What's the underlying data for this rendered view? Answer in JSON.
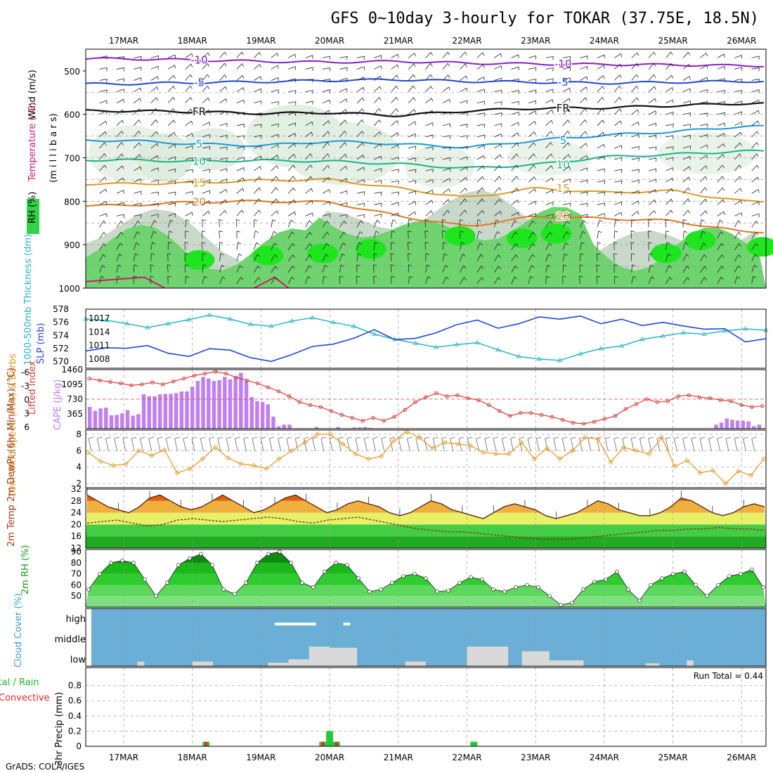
{
  "title": "GFS 0~10day 3-hourly for TOKAR (37.75E, 18.5N)",
  "footer": "GrADS: COLA/IGES",
  "colors": {
    "purple": "#8a1ec8",
    "blue": "#1f47d8",
    "lightblue": "#1e96d8",
    "teal": "#16b48c",
    "gold": "#dc9a1e",
    "orange": "#e07820",
    "magenta": "#d2186e",
    "cyan": "#28b4c8",
    "rhGreen": "#32d24a",
    "cape": "#c080f0",
    "li": "#dc3c3c",
    "wind10": "#e6961e",
    "cloud": "#6baed6",
    "cloudFill": "#d9d9d9",
    "rain": "#28c83c",
    "conv": "#e62828"
  },
  "chart_data": [
    {
      "id": "upper",
      "type": "heatmap",
      "ylabel_parts": [
        "Wind (m/s)",
        "Temperature (°C)",
        "RH (%)",
        "(m i l l i b a r s)"
      ],
      "dates": [
        "17MAR",
        "18MAR",
        "19MAR",
        "20MAR",
        "21MAR",
        "22MAR",
        "23MAR",
        "24MAR",
        "25MAR",
        "26MAR"
      ],
      "y_ticks": [
        500,
        600,
        700,
        800,
        900,
        1000
      ],
      "ylim": [
        450,
        1000
      ],
      "isotherms": [
        {
          "label": "-10",
          "y": [
            472,
            475,
            478,
            480,
            478,
            482,
            484,
            485,
            486,
            488
          ]
        },
        {
          "label": "-5",
          "y": [
            530,
            527,
            525,
            522,
            520,
            524,
            526,
            528,
            526,
            524
          ]
        },
        {
          "label": "FR",
          "y": [
            592,
            594,
            598,
            596,
            603,
            592,
            586,
            585,
            580,
            575
          ]
        },
        {
          "label": "5",
          "y": [
            660,
            668,
            672,
            662,
            668,
            676,
            660,
            648,
            640,
            628
          ]
        },
        {
          "label": "10",
          "y": [
            705,
            708,
            706,
            708,
            714,
            724,
            716,
            698,
            692,
            685
          ]
        },
        {
          "label": "15",
          "y": [
            760,
            758,
            752,
            750,
            770,
            792,
            770,
            780,
            776,
            800
          ]
        },
        {
          "label": "20",
          "y": [
            810,
            802,
            800,
            802,
            834,
            858,
            835,
            840,
            845,
            870
          ]
        }
      ]
    },
    {
      "id": "slp_thk",
      "type": "line",
      "ylabel_left": "1000-500mb Thickness (dm)",
      "ylabel_right": "SLP (mb)",
      "left_ticks": [
        570,
        572,
        574,
        576,
        578
      ],
      "right_ticks": [
        1008,
        1011,
        1014,
        1017
      ],
      "series": [
        {
          "name": "1000-500mb Thickness (dm)",
          "values": [
            576.5,
            576.3,
            575.8,
            575.2,
            575.8,
            576.4,
            577.1,
            576.5,
            575.7,
            575.4,
            576.2,
            576.7,
            576.0,
            575.4,
            574.2,
            573.4,
            572.8,
            572.2,
            572.6,
            572.9,
            571.8,
            570.8,
            570.4,
            570.2,
            571.2,
            572.0,
            572.4,
            573.4,
            573.9,
            574.4,
            574.2,
            574.7,
            575.0,
            574.8
          ]
        },
        {
          "name": "SLP (mb)",
          "values": [
            1009.8,
            1010.5,
            1010.4,
            1011.0,
            1009.3,
            1008.6,
            1010.3,
            1010.0,
            1008.3,
            1007.5,
            1009.0,
            1010.8,
            1011.3,
            1012.6,
            1014.5,
            1012.3,
            1012.6,
            1013.8,
            1015.6,
            1016.6,
            1014.8,
            1015.8,
            1017.3,
            1016.8,
            1017.5,
            1015.8,
            1016.8,
            1015.4,
            1016.1,
            1015.3,
            1014.6,
            1014.7,
            1011.8,
            1012.5
          ]
        }
      ]
    },
    {
      "id": "cape_li",
      "type": "bar",
      "ylabel_left": "Lifted Index",
      "ylabel_right": "CAPE (J/kg)",
      "li_ticks": [
        "-6",
        "-3",
        "0",
        "3",
        "6"
      ],
      "cape_ticks": [
        365,
        730,
        1095,
        1460
      ],
      "cape_values": [
        540,
        440,
        500,
        520,
        330,
        340,
        380,
        460,
        320,
        360,
        850,
        800,
        800,
        850,
        860,
        860,
        880,
        920,
        920,
        1040,
        1180,
        1280,
        1240,
        1180,
        1200,
        1280,
        1220,
        1280,
        1380,
        1180,
        780,
        680,
        660,
        600,
        300,
        60,
        100,
        100,
        0,
        0,
        0,
        0,
        40,
        0,
        0,
        0,
        40,
        0,
        0,
        30,
        30,
        40,
        20,
        0,
        0,
        0,
        0,
        0,
        0,
        0,
        0,
        0,
        0,
        0,
        0,
        0,
        0,
        0,
        0,
        0,
        0,
        0,
        0,
        0,
        0,
        0,
        0,
        0,
        0,
        0,
        0,
        0,
        0,
        0,
        0,
        0,
        0,
        0,
        0,
        0,
        0,
        0,
        0,
        0,
        0,
        0,
        0,
        0,
        0,
        0,
        0,
        0,
        0,
        0,
        0,
        0,
        0,
        0,
        0,
        0,
        0,
        0,
        0,
        0,
        0,
        0,
        100,
        150,
        250,
        220,
        200,
        200,
        180,
        60,
        100,
        180
      ],
      "li_values": [
        -4.2,
        -3.8,
        -3.5,
        -3.2,
        -2.8,
        -3.0,
        -3.4,
        -3.0,
        -3.6,
        -4.2,
        -4.8,
        -5.2,
        -5.6,
        -5.2,
        -4.4,
        -3.8,
        -3.2,
        -2.4,
        -1.6,
        -0.6,
        0.6,
        1.2,
        1.6,
        2.4,
        3.2,
        3.8,
        4.4,
        3.8,
        4.4,
        3.6,
        2.2,
        0.6,
        -0.4,
        -1.2,
        -0.6,
        -0.8,
        -0.2,
        0.2,
        1.2,
        2.4,
        3.4,
        2.8,
        2.8,
        3.2,
        3.6,
        4.2,
        4.8,
        5.0,
        4.6,
        4.0,
        3.4,
        2.0,
        1.0,
        0.0,
        0.6,
        0.4,
        -0.6,
        -0.8,
        -0.4,
        -0.2,
        0.2,
        0.4,
        1.2,
        1.6,
        1.4
      ]
    },
    {
      "id": "wind10",
      "type": "line",
      "ylabel": "10m Wind Speed (m/s) & Barbs",
      "y_ticks": [
        2,
        4,
        6,
        8
      ],
      "values": [
        5.8,
        4.7,
        4.2,
        4.4,
        6.0,
        5.4,
        6.1,
        3.3,
        3.8,
        5.0,
        6.4,
        5.1,
        4.4,
        4.2,
        3.8,
        5.0,
        6.0,
        7.0,
        8.0,
        8.0,
        6.8,
        5.6,
        5.0,
        5.3,
        7.2,
        8.3,
        7.6,
        6.3,
        7.0,
        6.8,
        6.6,
        5.8,
        5.6,
        5.6,
        7.0,
        5.0,
        6.3,
        5.0,
        6.0,
        7.6,
        7.4,
        4.6,
        6.4,
        6.0,
        5.6,
        7.6,
        4.1,
        4.8,
        3.3,
        3.6,
        2.0,
        3.5,
        3.0,
        5.0
      ]
    },
    {
      "id": "temp2m",
      "type": "area",
      "ylabel": "2m Temp 2m DewPt (6hr Min/Max) (°C)",
      "y_ticks": [
        12,
        16,
        20,
        24,
        28,
        32
      ],
      "temp_values": [
        30,
        28,
        26,
        25,
        24,
        26,
        29,
        30,
        28,
        26,
        25,
        26,
        28,
        30,
        28,
        26,
        24,
        25,
        27,
        29,
        30,
        28,
        26,
        24,
        25,
        27,
        28,
        27,
        26,
        24,
        23,
        24,
        26,
        28,
        27,
        25,
        24,
        23,
        22,
        24,
        26,
        27,
        26,
        25,
        23,
        22,
        23,
        24,
        26,
        28,
        27,
        25,
        24,
        23,
        23,
        24,
        26,
        29,
        28,
        26,
        24,
        23,
        24,
        26,
        27,
        26
      ],
      "dew_values": [
        20.5,
        21,
        21.5,
        20.5,
        19.5,
        20,
        21.5,
        22,
        21.5,
        21,
        21.5,
        22,
        22.5,
        22,
        21,
        20.5,
        21.5,
        22,
        22.5,
        21.5,
        20.5,
        19.5,
        18.5,
        18,
        17.5,
        17.5,
        17,
        16.5,
        16,
        15.5,
        15,
        15,
        15,
        15.5,
        16,
        16.5,
        17,
        17.5,
        18,
        18,
        18.5,
        18.5,
        19,
        18.5,
        18.5,
        18
      ]
    },
    {
      "id": "rh2m",
      "type": "area",
      "ylabel": "2m RH (%)",
      "y_ticks": [
        50,
        60,
        70,
        80,
        90
      ],
      "values": [
        56,
        70,
        80,
        82,
        80,
        65,
        50,
        62,
        78,
        84,
        88,
        78,
        56,
        52,
        62,
        80,
        88,
        90,
        80,
        62,
        58,
        72,
        80,
        78,
        66,
        54,
        56,
        62,
        68,
        70,
        66,
        54,
        55,
        62,
        67,
        65,
        56,
        54,
        58,
        60,
        58,
        50,
        42,
        44,
        56,
        63,
        65,
        72,
        56,
        46,
        60,
        66,
        70,
        72,
        60,
        50,
        60,
        68,
        70,
        74,
        58
      ]
    },
    {
      "id": "cloud",
      "type": "heatmap",
      "ylabel": "Cloud Cover (%)",
      "levels": [
        "high",
        "middle",
        "low"
      ]
    },
    {
      "id": "precip",
      "type": "bar",
      "ylabel": "3hr Precip (mm)",
      "legend": [
        "Total / Rain",
        "Convective"
      ],
      "annotation": "Run Total = 0.44",
      "y_ticks": [
        "0",
        "0.2",
        "0.4",
        "0.6",
        "0.8"
      ],
      "bars": [
        {
          "day": 1.2,
          "total": 0.06,
          "conv": 0.06
        },
        {
          "day": 2.9,
          "total": 0.06,
          "conv": 0.06
        },
        {
          "day": 3.0,
          "total": 0.2,
          "conv": 0.0
        },
        {
          "day": 3.1,
          "total": 0.06,
          "conv": 0.06
        },
        {
          "day": 5.1,
          "total": 0.06,
          "conv": 0.0
        }
      ]
    }
  ]
}
